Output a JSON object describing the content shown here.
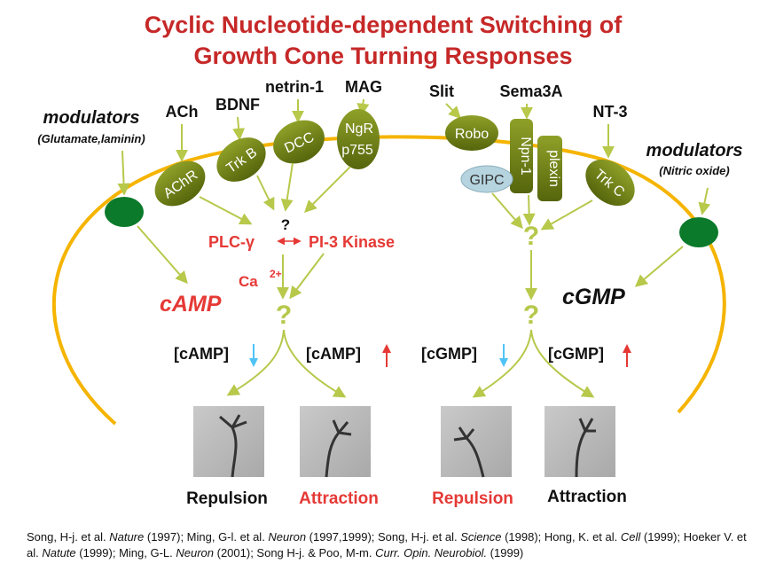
{
  "title": {
    "line1": "Cyclic Nucleotide-dependent Switching of",
    "line2": "Growth Cone Turning Responses"
  },
  "colors": {
    "title": "#c62828",
    "membrane": "#f5b400",
    "receptor": "#6b7d13",
    "modulator_node": "#0b7a2a",
    "arrow": "#b7c84a",
    "red": "#e53935",
    "down_arrow": "#4fc3f7"
  },
  "left": {
    "modulators_label": "modulators",
    "modulators_sub": "(Glutamate,laminin)",
    "ligands": [
      "ACh",
      "BDNF",
      "netrin-1",
      "MAG"
    ],
    "receptors": [
      "AChR",
      "Trk B",
      "DCC",
      "NgR",
      "p755"
    ],
    "question_top": "?",
    "plc": "PLC-γ",
    "pi3k": "PI-3 Kinase",
    "ca": "Ca",
    "ca_sup": "2+",
    "question": "?",
    "nucleotide": "cAMP",
    "low": "[cAMP]",
    "high": "[cAMP]",
    "outcome_low": "Repulsion",
    "outcome_high": "Attraction"
  },
  "right": {
    "modulators_label": "modulators",
    "modulators_sub": "(Nitric oxide)",
    "ligands": [
      "Slit",
      "Sema3A",
      "NT-3"
    ],
    "receptors": [
      "Robo",
      "Npn-1",
      "plexin",
      "GIPC",
      "Trk C"
    ],
    "question_top": "?",
    "question": "?",
    "nucleotide": "cGMP",
    "low": "[cGMP]",
    "high": "[cGMP]",
    "outcome_low": "Repulsion",
    "outcome_high": "Attraction"
  },
  "references": {
    "parts": [
      {
        "t": "Song, H-j. et al. "
      },
      {
        "t": "Nature",
        "i": true
      },
      {
        "t": " (1997);  Ming, G-l. et al. "
      },
      {
        "t": "Neuron",
        "i": true
      },
      {
        "t": " (1997,1999); Song, H-j. et al. "
      },
      {
        "t": "Science",
        "i": true
      },
      {
        "t": " (1998); Hong, K. et al. "
      },
      {
        "t": "Cell",
        "i": true
      },
      {
        "t": " (1999); Hoeker V. et al. "
      },
      {
        "t": "Natute",
        "i": true
      },
      {
        "t": " (1999); Ming, G-L. "
      },
      {
        "t": "Neuron",
        "i": true
      },
      {
        "t": " (2001); Song H-j. & Poo, M-m. "
      },
      {
        "t": "Curr. Opin. Neurobiol.",
        "i": true
      },
      {
        "t": " (1999)"
      }
    ]
  }
}
